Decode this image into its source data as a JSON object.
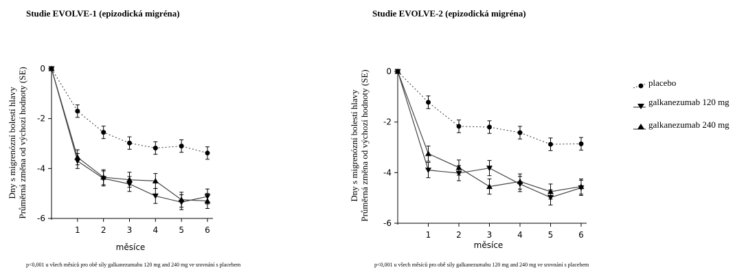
{
  "chart_data": [
    {
      "type": "line",
      "title": "Studie EVOLVE-1 (epizodická migréna)",
      "xlabel": "měsíce",
      "ylabel_line1": "Dny s migrenózní bolestí hlavy",
      "ylabel_line2": "Průměrná změna  od výchozí hodnoty  (SE)",
      "x": [
        0,
        1,
        2,
        3,
        4,
        5,
        6
      ],
      "xticks": [
        "1",
        "2",
        "3",
        "4",
        "5",
        "6"
      ],
      "yticks": [
        "0",
        "-2",
        "-4",
        "-6"
      ],
      "ylim": [
        -6,
        0
      ],
      "series": [
        {
          "name": "placebo",
          "marker": "circle",
          "dash": true,
          "values": [
            0,
            -1.7,
            -2.55,
            -2.98,
            -3.18,
            -3.1,
            -3.38
          ],
          "errors": [
            0,
            0.25,
            0.25,
            0.25,
            0.25,
            0.25,
            0.25
          ]
        },
        {
          "name": "galkanezumab 120 mg",
          "marker": "triangle-down",
          "dash": false,
          "values": [
            0,
            -3.7,
            -4.4,
            -4.62,
            -5.1,
            -5.35,
            -5.12
          ],
          "errors": [
            0,
            0.3,
            0.3,
            0.3,
            0.3,
            0.3,
            0.3
          ]
        },
        {
          "name": "galkanezumab 240 mg",
          "marker": "triangle-up",
          "dash": false,
          "values": [
            0,
            -3.55,
            -4.35,
            -4.45,
            -4.5,
            -5.25,
            -5.3
          ],
          "errors": [
            0,
            0.3,
            0.3,
            0.3,
            0.3,
            0.3,
            0.3
          ]
        }
      ],
      "footnote": "p<0,001 u všech měsíců pro obě síly galkanezumabu 120 mg and 240 mg ve srovnání s placebem"
    },
    {
      "type": "line",
      "title": "Studie EVOLVE-2 (epizodická migréna)",
      "xlabel": "měsíce",
      "ylabel_line1": "Dny s migrenózní bolestí hlavy",
      "ylabel_line2": "Průměrná změna  od výchozí hodnoty  (SE)",
      "x": [
        0,
        1,
        2,
        3,
        4,
        5,
        6
      ],
      "xticks": [
        "1",
        "2",
        "3",
        "4",
        "5",
        "6"
      ],
      "yticks": [
        "0",
        "-2",
        "-4",
        "-6"
      ],
      "ylim": [
        -6,
        0
      ],
      "series": [
        {
          "name": "placebo",
          "marker": "circle",
          "dash": true,
          "values": [
            0,
            -1.22,
            -2.17,
            -2.2,
            -2.42,
            -2.88,
            -2.86
          ],
          "errors": [
            0,
            0.25,
            0.25,
            0.25,
            0.25,
            0.25,
            0.25
          ]
        },
        {
          "name": "galkanezumab 120 mg",
          "marker": "triangle-down",
          "dash": false,
          "values": [
            0,
            -3.9,
            -4.02,
            -3.82,
            -4.45,
            -4.98,
            -4.6
          ],
          "errors": [
            0,
            0.3,
            0.3,
            0.3,
            0.3,
            0.3,
            0.3
          ]
        },
        {
          "name": "galkanezumab 240 mg",
          "marker": "triangle-up",
          "dash": false,
          "values": [
            0,
            -3.25,
            -3.8,
            -4.55,
            -4.35,
            -4.75,
            -4.55
          ],
          "errors": [
            0,
            0.3,
            0.3,
            0.3,
            0.3,
            0.3,
            0.3
          ]
        }
      ],
      "footnote": "p<0,001 u všech měsíců pro obě síly galkanezumabu 120 mg and 240 mg ve srovnání s placebem"
    }
  ],
  "legend": {
    "placement": "right",
    "entries": [
      "placebo",
      "galkanezumab 120 mg",
      "galkanezumab 240 mg"
    ]
  }
}
